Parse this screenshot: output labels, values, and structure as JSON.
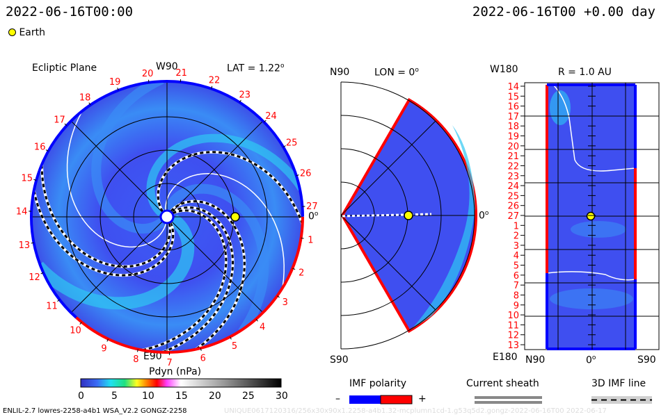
{
  "header": {
    "left_time": "2022-06-16T00:00",
    "right_time": "2022-06-16T00 +0.00 day"
  },
  "legend": {
    "earth_label": "Earth",
    "earth_color": "#ffff00"
  },
  "colors": {
    "rim_positive": "#ff0000",
    "rim_negative": "#0000ff",
    "field_base": "#3f4ff0"
  },
  "chart_data": [
    {
      "type": "heatmap",
      "title": "Ecliptic Plane",
      "subtitle": "LAT = 1.22",
      "subtitle_sup": "o",
      "top_label": "W90",
      "bottom_label": "E90",
      "right_label": "0",
      "right_label_sup": "o",
      "carrington_ticks": [
        "19",
        "20",
        "21",
        "22",
        "23",
        "24",
        "25",
        "26",
        "27",
        "1",
        "2",
        "3",
        "4",
        "5",
        "6",
        "7",
        "8",
        "9",
        "10",
        "11",
        "12",
        "13",
        "14",
        "15",
        "16",
        "17",
        "18"
      ],
      "colorbar": {
        "label": "Pdyn (nPa)",
        "ticks": [
          "0",
          "5",
          "10",
          "15",
          "20",
          "25",
          "30"
        ],
        "range": [
          0,
          30
        ]
      }
    },
    {
      "type": "heatmap",
      "title": "LON = 0",
      "title_sup": "o",
      "top_label": "N90",
      "bottom_label": "S90",
      "right_label": "0",
      "right_label_sup": "o"
    },
    {
      "type": "heatmap",
      "title": "R = 1.0 AU",
      "top_left_label": "W180",
      "bottom_left_label": "E180",
      "x_ticks": [
        "N90",
        "0",
        "S90"
      ],
      "x_center_sup": "o",
      "y_ticks": [
        "14",
        "15",
        "16",
        "17",
        "18",
        "19",
        "20",
        "21",
        "22",
        "23",
        "24",
        "25",
        "26",
        "27",
        "1",
        "2",
        "3",
        "4",
        "5",
        "6",
        "7",
        "8",
        "9",
        "10",
        "11",
        "12",
        "13"
      ]
    }
  ],
  "legends": {
    "imf_polarity": {
      "title": "IMF polarity",
      "minus": "–",
      "plus": "+"
    },
    "current_sheath": {
      "title": "Current sheath"
    },
    "imf_line": {
      "title": "3D IMF line"
    }
  },
  "footer": {
    "model": "ENLIL-2.7 lowres-2258-a4b1 WSA_V2.2 GONGZ-2258",
    "run_id": "UNIQUE0617120316/256x30x90x1.2258-a4b1.32-mcplumn1cd-1.g53q5d2.gongz-2022-06-16T00   2022-06-17"
  }
}
